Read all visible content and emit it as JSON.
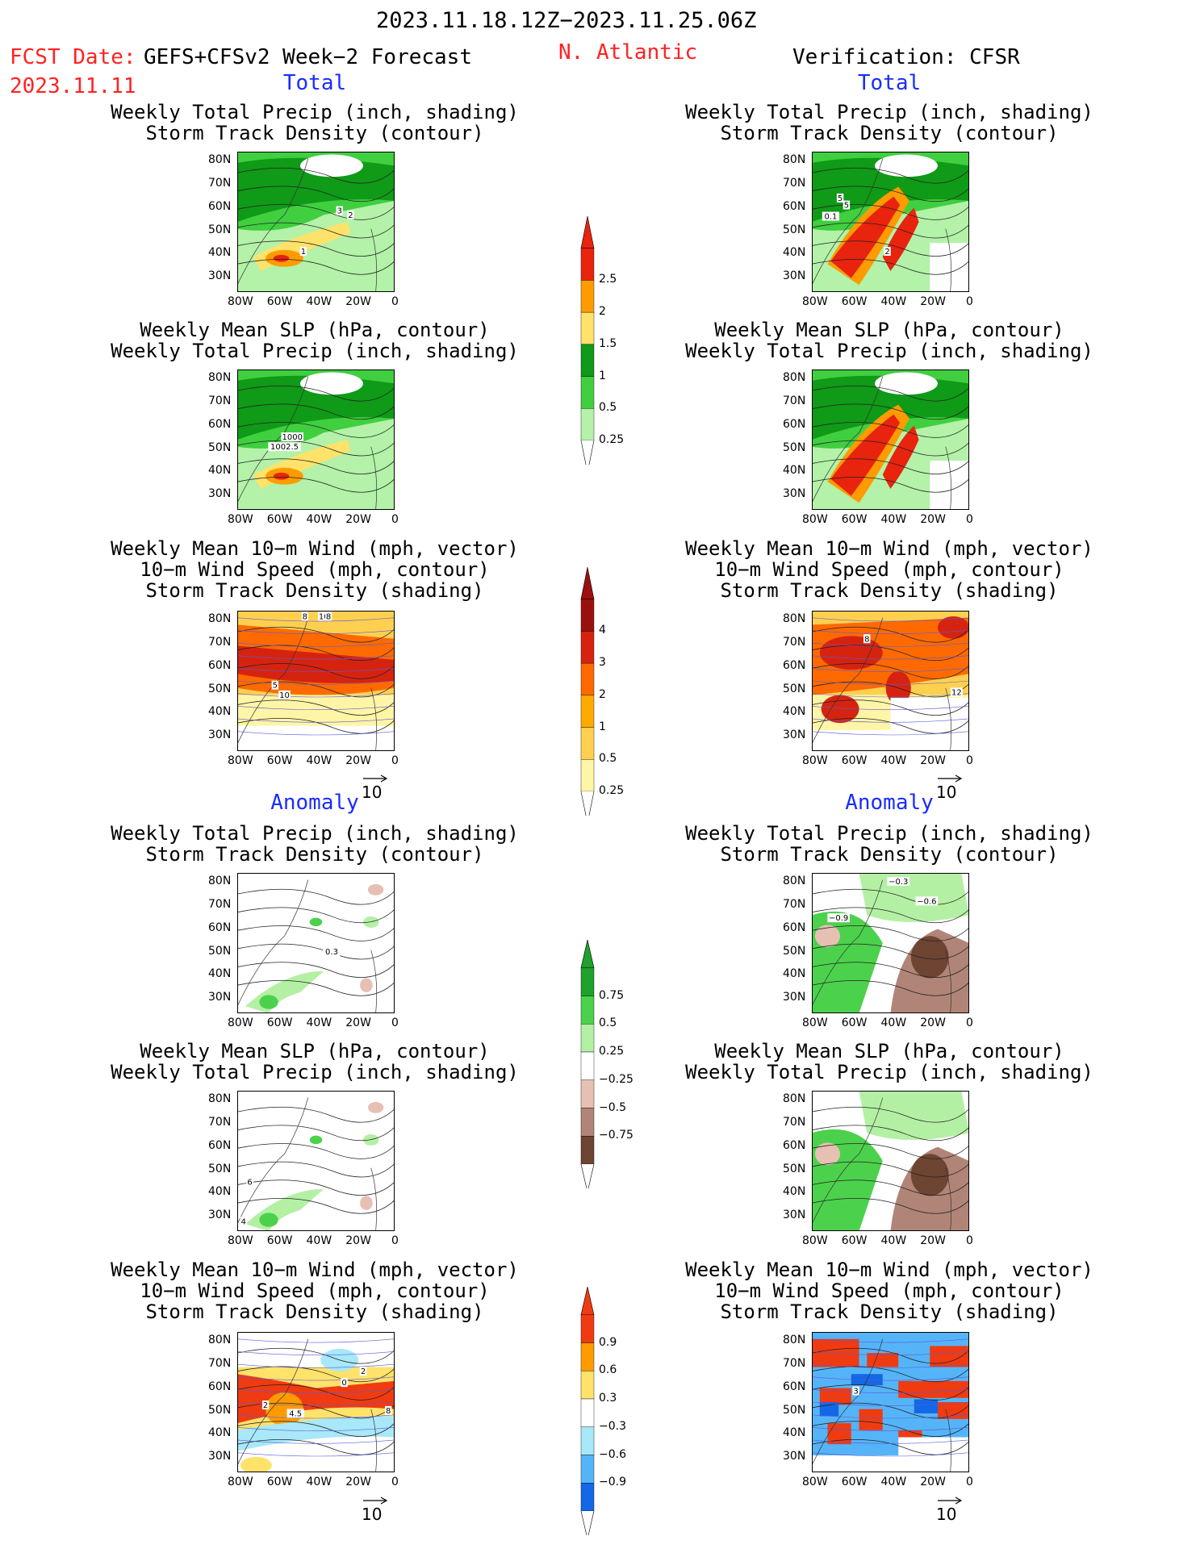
{
  "header": {
    "date_range": "2023.11.18.12Z−2023.11.25.06Z",
    "fcst_label": "FCST Date:",
    "fcst_model": "GEFS+CFSv2 Week−2 Forecast",
    "fcst_date": "2023.11.11",
    "region": "N. Atlantic",
    "verification": "Verification: CFSR"
  },
  "sections": {
    "total": "Total",
    "anomaly": "Anomaly"
  },
  "vector_ref": "10",
  "axes": {
    "lat_labels": [
      "80N",
      "70N",
      "60N",
      "50N",
      "40N",
      "30N"
    ],
    "lon_labels": [
      "80W",
      "60W",
      "40W",
      "20W",
      "0"
    ]
  },
  "panel_titles": {
    "precip_storm": [
      "Weekly Total Precip (inch, shading)",
      "Storm Track Density (contour)"
    ],
    "slp_precip": [
      "Weekly Mean SLP (hPa, contour)",
      "Weekly Total Precip (inch, shading)"
    ],
    "wind_storm": [
      "Weekly Mean 10−m Wind (mph, vector)",
      "10−m Wind Speed (mph, contour)",
      "Storm Track Density (shading)"
    ]
  },
  "colorbars": {
    "precip_total": {
      "labels": [
        "2.5",
        "2",
        "1.5",
        "1",
        "0.5",
        "0.25"
      ],
      "colors": [
        "#e8230e",
        "#ff9b00",
        "#ffe26a",
        "#0f9a17",
        "#3fcf3f",
        "#b3f2a8"
      ]
    },
    "storm_total": {
      "labels": [
        "4",
        "3",
        "2",
        "1",
        "0.5",
        "0.25"
      ],
      "colors": [
        "#9a1010",
        "#d62310",
        "#ff6a00",
        "#ffaa00",
        "#ffd050",
        "#fff5a6"
      ]
    },
    "precip_anom": {
      "labels": [
        "0.75",
        "0.5",
        "0.25",
        "−0.25",
        "−0.5",
        "−0.75"
      ],
      "colors": [
        "#1fa12b",
        "#4cd14c",
        "#b4f0a4",
        "#ffffff",
        "#e6c0b2",
        "#b08577",
        "#6e4433"
      ]
    },
    "storm_anom": {
      "labels": [
        "0.9",
        "0.6",
        "0.3",
        "−0.3",
        "−0.6",
        "−0.9"
      ],
      "colors": [
        "#ef3b12",
        "#ff9b00",
        "#ffe26a",
        "#ffffff",
        "#a8e8f8",
        "#55b4f8",
        "#1467e6"
      ]
    }
  },
  "maps": {
    "f_precip": {
      "labels": [
        "3",
        "2",
        "1"
      ]
    },
    "f_slp": {
      "labels": [
        "1000",
        "1002.5"
      ]
    },
    "f_wind": {
      "labels": [
        "8",
        "10",
        "8",
        "5",
        "10"
      ]
    },
    "v_precip": {
      "labels": [
        "5",
        "5",
        "0.1",
        "2"
      ]
    },
    "v_wind": {
      "labels": [
        "8",
        "12"
      ]
    },
    "fa_precip": {
      "labels": [
        "0.3"
      ]
    },
    "fa_slp": {
      "labels": [
        "6",
        "4"
      ]
    },
    "fa_wind": {
      "labels": [
        "2",
        "4.5",
        "0",
        "2",
        "8"
      ]
    },
    "va_precip": {
      "labels": [
        "−0.3",
        "−0.6",
        "−0.9"
      ]
    },
    "va_wind": {
      "labels": [
        "3"
      ]
    }
  }
}
